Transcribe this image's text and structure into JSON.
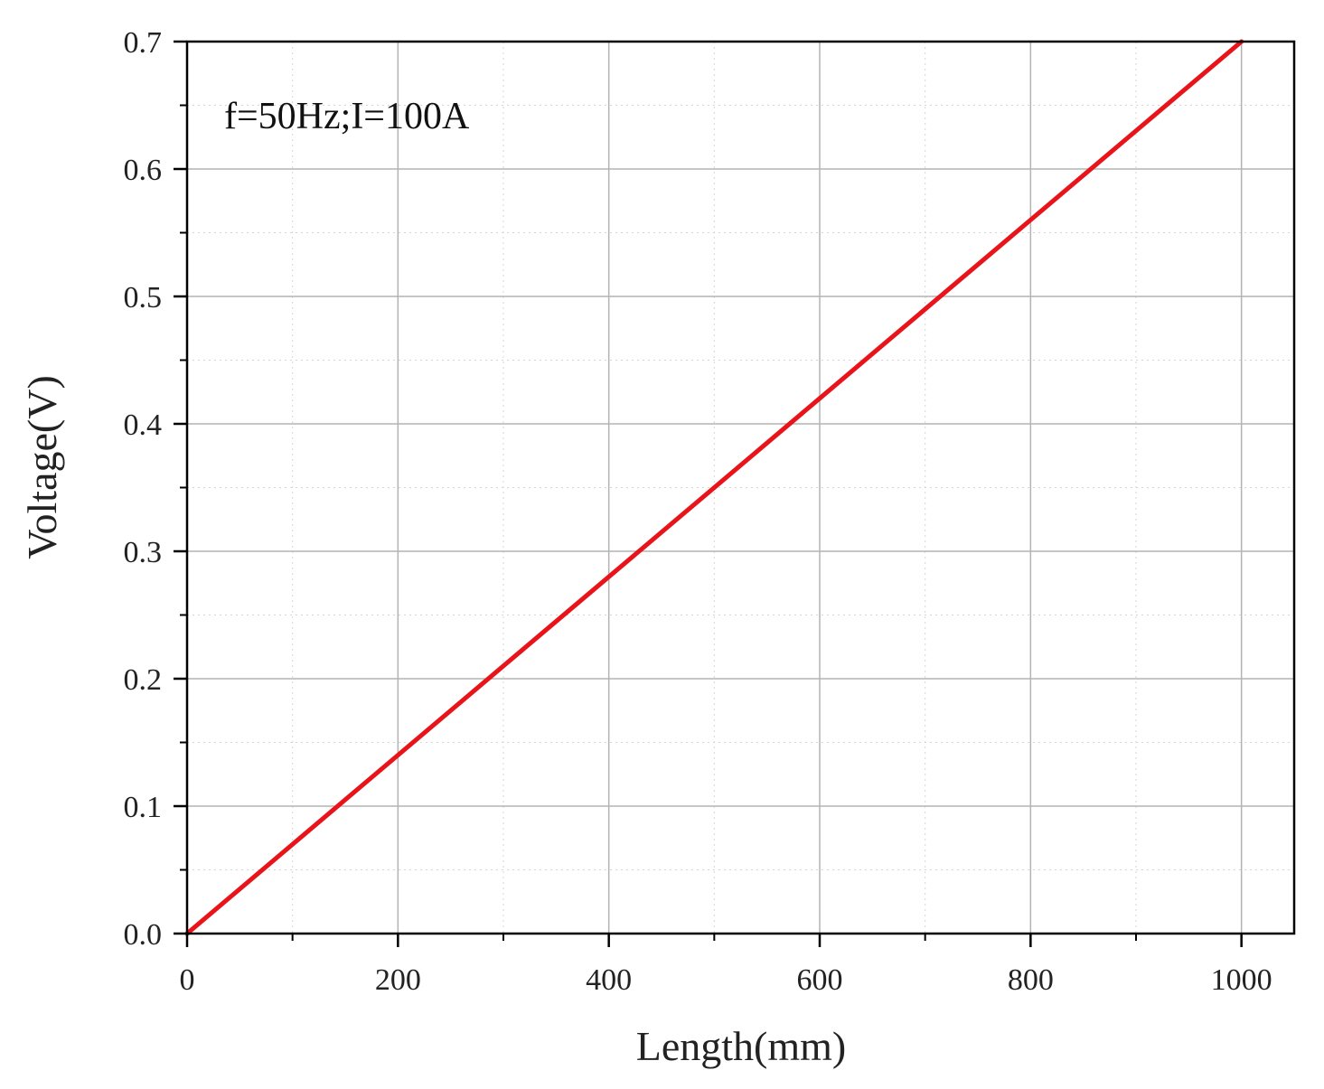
{
  "chart_data": {
    "type": "line",
    "xlabel": "Length(mm)",
    "ylabel": "Voltage(V)",
    "xlim": [
      0,
      1050
    ],
    "ylim": [
      0,
      0.7
    ],
    "x_ticks": [
      0,
      200,
      400,
      600,
      800,
      1000
    ],
    "x_tick_labels": [
      "0",
      "200",
      "400",
      "600",
      "800",
      "1000"
    ],
    "y_ticks": [
      0.0,
      0.1,
      0.2,
      0.3,
      0.4,
      0.5,
      0.6,
      0.7
    ],
    "y_tick_labels": [
      "0.0",
      "0.1",
      "0.2",
      "0.3",
      "0.4",
      "0.5",
      "0.6",
      "0.7"
    ],
    "grid": true,
    "annotation": "f=50Hz;I=100A",
    "series": [
      {
        "color": "#e8141a",
        "x": [
          0,
          200,
          400,
          600,
          800,
          1000
        ],
        "y": [
          0.0,
          0.14,
          0.28,
          0.42,
          0.56,
          0.7
        ]
      }
    ]
  }
}
